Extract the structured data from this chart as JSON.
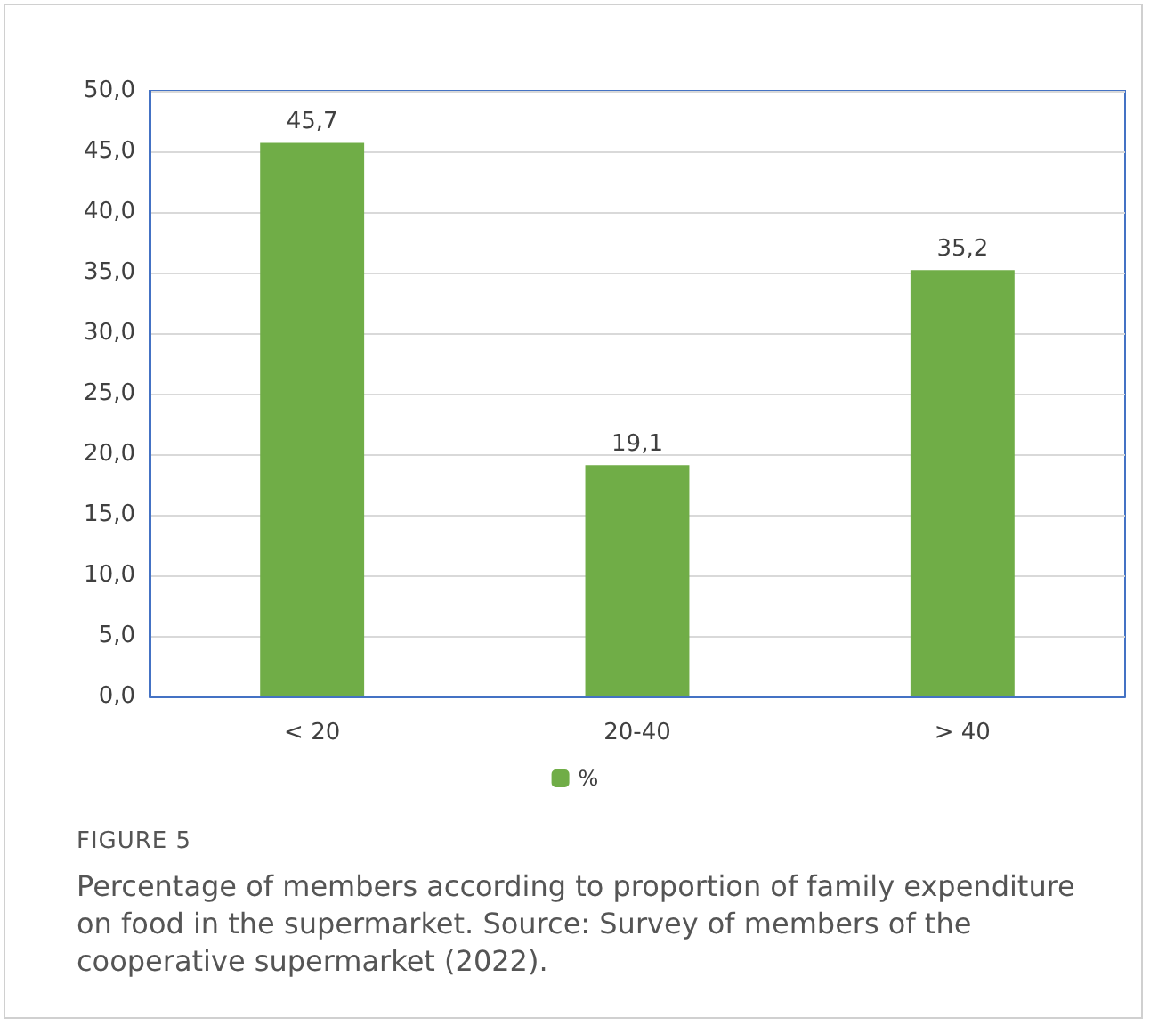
{
  "chart_data": {
    "type": "bar",
    "categories": [
      "< 20",
      "20-40",
      "> 40"
    ],
    "series": [
      {
        "name": "%",
        "color": "#70ad47",
        "values": [
          45.7,
          19.1,
          35.2
        ],
        "value_labels": [
          "45,7",
          "19,1",
          "35,2"
        ]
      }
    ],
    "ylim": [
      0,
      50
    ],
    "yticks": [
      {
        "value": 0,
        "label": "0,0"
      },
      {
        "value": 5,
        "label": "5,0"
      },
      {
        "value": 10,
        "label": "10,0"
      },
      {
        "value": 15,
        "label": "15,0"
      },
      {
        "value": 20,
        "label": "20,0"
      },
      {
        "value": 25,
        "label": "25,0"
      },
      {
        "value": 30,
        "label": "30,0"
      },
      {
        "value": 35,
        "label": "35,0"
      },
      {
        "value": 40,
        "label": "40,0"
      },
      {
        "value": 45,
        "label": "45,0"
      },
      {
        "value": 50,
        "label": "50,0"
      }
    ],
    "grid": "y",
    "legend": "bottom",
    "annotations": [
      "FIGURE 5",
      "Percentage of members according to proportion of family expenditure on food in the supermarket. Source: Survey of members of the cooperative supermarket (2022)."
    ]
  }
}
